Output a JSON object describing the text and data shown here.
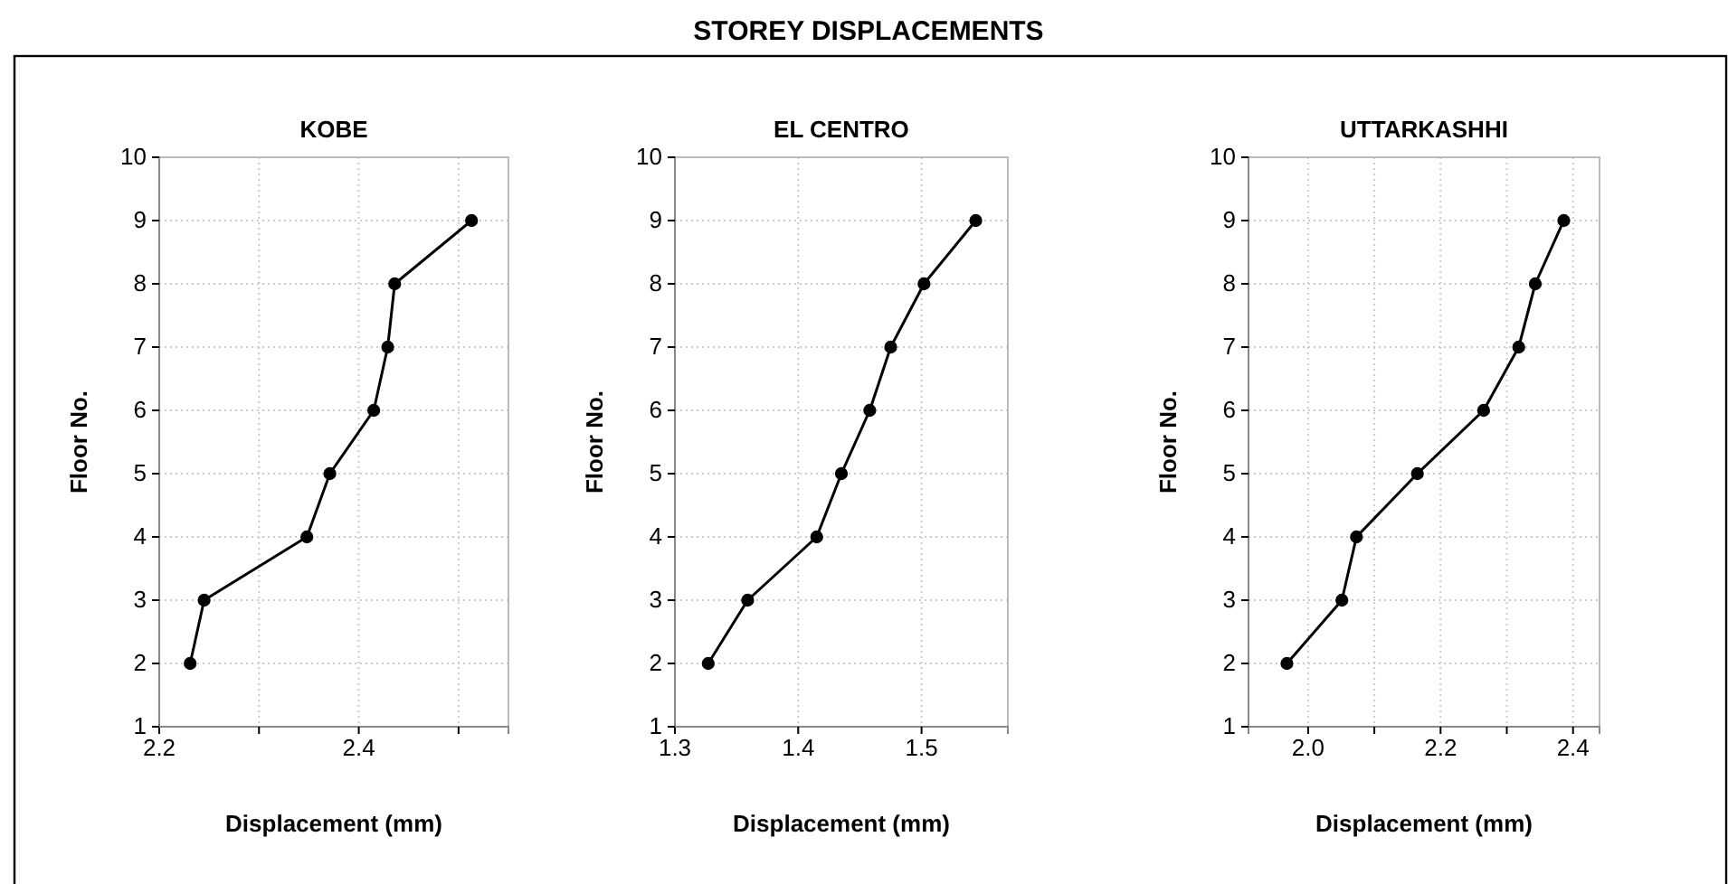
{
  "chart_data": [
    {
      "type": "line",
      "title": "KOBE",
      "xlabel": "Displacement (mm)",
      "ylabel": "Floor No.",
      "annotations": [
        "STOREY DISPLACEMENTS"
      ],
      "marker": "circle",
      "grid": true,
      "xlim": [
        2.2,
        2.55
      ],
      "xticks": [
        2.2,
        {
          "value": 2.3,
          "label": null
        },
        2.4,
        {
          "value": 2.5,
          "label": null
        }
      ],
      "ylim": [
        1,
        10
      ],
      "yticks": [
        1,
        2,
        3,
        4,
        5,
        6,
        7,
        8,
        9,
        10
      ],
      "series": [
        {
          "color": "#000000",
          "x": [
            2.231,
            2.245,
            2.348,
            2.371,
            2.415,
            2.429,
            2.436,
            2.513
          ],
          "values": [
            2,
            3,
            4,
            5,
            6,
            7,
            8,
            9
          ]
        }
      ]
    },
    {
      "type": "line",
      "title": "EL CENTRO",
      "xlabel": "Displacement (mm)",
      "ylabel": "Floor No.",
      "marker": "circle",
      "grid": true,
      "xlim": [
        1.3,
        1.57
      ],
      "xticks": [
        1.3,
        1.4,
        1.5
      ],
      "ylim": [
        1,
        10
      ],
      "yticks": [
        1,
        2,
        3,
        4,
        5,
        6,
        7,
        8,
        9,
        10
      ],
      "series": [
        {
          "color": "#000000",
          "x": [
            1.327,
            1.359,
            1.415,
            1.435,
            1.458,
            1.475,
            1.502,
            1.544
          ],
          "values": [
            2,
            3,
            4,
            5,
            6,
            7,
            8,
            9
          ]
        }
      ]
    },
    {
      "type": "line",
      "title": "UTTARKASHHI",
      "xlabel": "Displacement (mm)",
      "ylabel": "Floor No.",
      "marker": "circle",
      "grid": true,
      "xlim": [
        1.91,
        2.44
      ],
      "xticks": [
        {
          "value": 2.0,
          "label": "2.0"
        },
        {
          "value": 2.1,
          "label": null
        },
        {
          "value": 2.2,
          "label": "2.2"
        },
        {
          "value": 2.3,
          "label": null
        },
        {
          "value": 2.4,
          "label": "2.4"
        }
      ],
      "ylim": [
        1,
        10
      ],
      "yticks": [
        1,
        2,
        3,
        4,
        5,
        6,
        7,
        8,
        9,
        10
      ],
      "series": [
        {
          "color": "#000000",
          "x": [
            1.968,
            2.051,
            2.073,
            2.165,
            2.265,
            2.318,
            2.343,
            2.386
          ],
          "values": [
            2,
            3,
            4,
            5,
            6,
            7,
            8,
            9
          ]
        }
      ]
    }
  ]
}
